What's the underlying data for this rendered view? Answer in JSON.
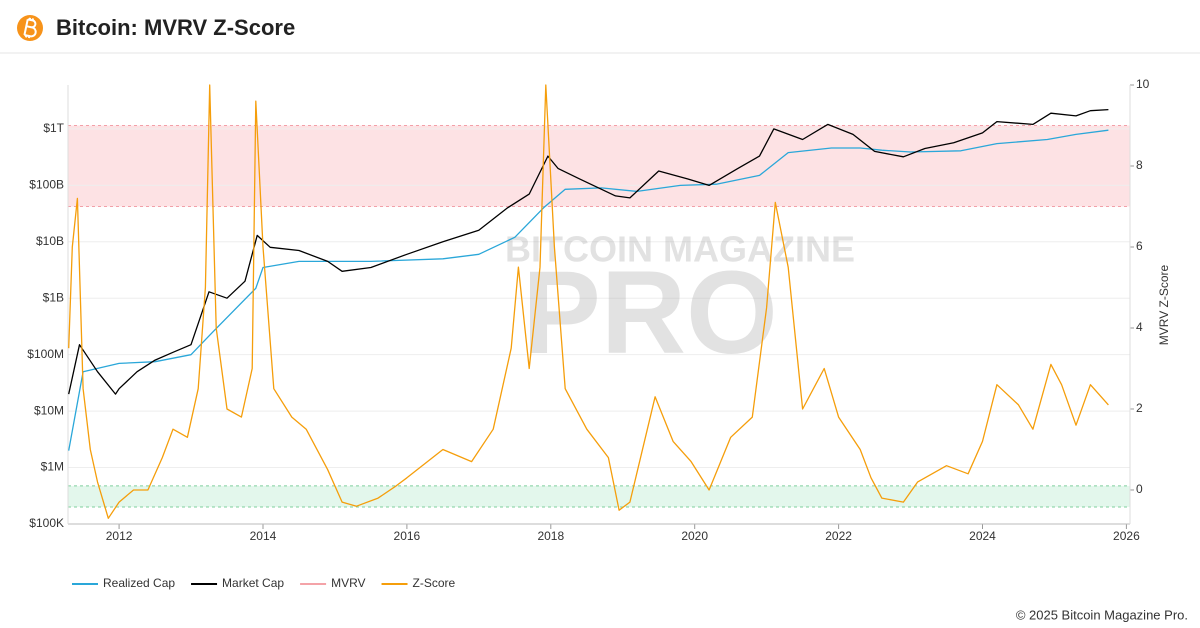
{
  "chart_data": {
    "type": "line",
    "title": "Bitcoin: MVRV Z-Score",
    "footer": "© 2025 Bitcoin Magazine Pro.",
    "watermark": [
      "BITCOIN MAGAZINE",
      "PRO"
    ],
    "y2label": "MVRV Z-Score",
    "yscale": "log",
    "xlim": [
      2011.29,
      2026.05
    ],
    "xticks": [
      2012,
      2014,
      2016,
      2018,
      2020,
      2022,
      2024,
      2026
    ],
    "ylim": [
      100000,
      6000000000000
    ],
    "yticks": [
      {
        "value": 100000,
        "label": "$100K"
      },
      {
        "value": 1000000,
        "label": "$1M"
      },
      {
        "value": 10000000,
        "label": "$10M"
      },
      {
        "value": 100000000,
        "label": "$100M"
      },
      {
        "value": 1000000000,
        "label": "$1B"
      },
      {
        "value": 10000000000,
        "label": "$10B"
      },
      {
        "value": 100000000000,
        "label": "$100B"
      },
      {
        "value": 1000000000000,
        "label": "$1T"
      }
    ],
    "y2lim": [
      -0.84,
      10
    ],
    "y2ticks": [
      0,
      2,
      4,
      6,
      8,
      10
    ],
    "grid": true,
    "zones": [
      {
        "from": 7,
        "to": 9,
        "color": "#fde2e4",
        "edge": "#f2a0a8",
        "axis": "y2"
      },
      {
        "from": -0.42,
        "to": 0.1,
        "color": "#e3f7ec",
        "edge": "#7fcf9d",
        "axis": "y2"
      }
    ],
    "series": [
      {
        "name": "Realized Cap",
        "color": "#2aa7d9",
        "x": [
          2011.3,
          2011.5,
          2012.0,
          2012.5,
          2013.0,
          2013.3,
          2013.9,
          2014.0,
          2014.5,
          2015.5,
          2016.5,
          2017.0,
          2017.5,
          2017.9,
          2018.2,
          2018.7,
          2019.2,
          2019.8,
          2020.3,
          2020.9,
          2021.3,
          2021.9,
          2022.3,
          2022.6,
          2023.0,
          2023.7,
          2024.2,
          2024.9,
          2025.3,
          2025.75
        ],
        "values": [
          2000000,
          50000000,
          70000000,
          75000000,
          100000000,
          250000000,
          1500000000,
          3500000000,
          4500000000,
          4500000000,
          5000000000,
          6000000000,
          12000000000,
          40000000000,
          85000000000,
          90000000000,
          78000000000,
          100000000000,
          105000000000,
          150000000000,
          380000000000,
          460000000000,
          460000000000,
          420000000000,
          390000000000,
          410000000000,
          550000000000,
          650000000000,
          800000000000,
          950000000000
        ]
      },
      {
        "name": "Market Cap",
        "color": "#000000",
        "x": [
          2011.3,
          2011.45,
          2011.7,
          2011.95,
          2012.0,
          2012.25,
          2012.5,
          2012.75,
          2013.0,
          2013.25,
          2013.5,
          2013.75,
          2013.92,
          2014.1,
          2014.5,
          2014.9,
          2015.1,
          2015.5,
          2016.0,
          2016.5,
          2017.0,
          2017.4,
          2017.7,
          2017.96,
          2018.1,
          2018.4,
          2018.9,
          2019.1,
          2019.5,
          2019.9,
          2020.2,
          2020.6,
          2020.9,
          2021.1,
          2021.5,
          2021.85,
          2022.2,
          2022.5,
          2022.9,
          2023.2,
          2023.6,
          2024.0,
          2024.2,
          2024.7,
          2024.95,
          2025.3,
          2025.5,
          2025.75
        ],
        "values": [
          20000000,
          150000000,
          50000000,
          20000000,
          25000000,
          50000000,
          80000000,
          110000000,
          150000000,
          1300000000,
          1000000000,
          2000000000,
          13000000000,
          8000000000,
          7000000000,
          4500000000,
          3000000000,
          3500000000,
          6000000000,
          10000000000,
          16000000000,
          40000000000,
          70000000000,
          330000000000,
          200000000000,
          130000000000,
          65000000000,
          60000000000,
          180000000000,
          130000000000,
          100000000000,
          200000000000,
          330000000000,
          1000000000000,
          650000000000,
          1200000000000,
          800000000000,
          400000000000,
          320000000000,
          450000000000,
          570000000000,
          850000000000,
          1350000000000,
          1200000000000,
          1900000000000,
          1700000000000,
          2100000000000,
          2200000000000
        ]
      },
      {
        "name": "MVRV",
        "color": "#f4a3a8",
        "hidden": true
      },
      {
        "name": "Z-Score",
        "color": "#f59e0b",
        "axis": "y2",
        "x": [
          2011.3,
          2011.35,
          2011.42,
          2011.5,
          2011.6,
          2011.7,
          2011.85,
          2012.0,
          2012.2,
          2012.4,
          2012.6,
          2012.75,
          2012.95,
          2013.1,
          2013.2,
          2013.26,
          2013.35,
          2013.5,
          2013.7,
          2013.85,
          2013.9,
          2014.0,
          2014.15,
          2014.4,
          2014.6,
          2014.9,
          2015.1,
          2015.3,
          2015.6,
          2015.85,
          2016.0,
          2016.5,
          2016.9,
          2017.2,
          2017.45,
          2017.55,
          2017.7,
          2017.85,
          2017.93,
          2018.05,
          2018.2,
          2018.5,
          2018.8,
          2018.95,
          2019.1,
          2019.45,
          2019.7,
          2019.95,
          2020.2,
          2020.5,
          2020.8,
          2021.0,
          2021.12,
          2021.3,
          2021.5,
          2021.8,
          2022.0,
          2022.3,
          2022.45,
          2022.6,
          2022.9,
          2023.1,
          2023.5,
          2023.8,
          2024.0,
          2024.2,
          2024.5,
          2024.7,
          2024.95,
          2025.1,
          2025.3,
          2025.5,
          2025.65,
          2025.75
        ],
        "values": [
          3.5,
          6.0,
          7.2,
          2.5,
          1.0,
          0.2,
          -0.7,
          -0.3,
          0,
          0,
          0.8,
          1.5,
          1.3,
          2.5,
          5,
          10,
          4,
          2,
          1.8,
          3,
          9.6,
          6,
          2.5,
          1.8,
          1.5,
          0.5,
          -0.3,
          -0.4,
          -0.2,
          0.1,
          0.3,
          1.0,
          0.7,
          1.5,
          3.5,
          5.5,
          3,
          5.5,
          10,
          6,
          2.5,
          1.5,
          0.8,
          -0.5,
          -0.3,
          2.3,
          1.2,
          0.7,
          0,
          1.3,
          1.8,
          4.5,
          7.1,
          5.5,
          2.0,
          3.0,
          1.8,
          1.0,
          0.3,
          -0.2,
          -0.3,
          0.2,
          0.6,
          0.4,
          1.2,
          2.6,
          2.1,
          1.5,
          3.1,
          2.6,
          1.6,
          2.6,
          2.3,
          2.1
        ]
      }
    ]
  }
}
